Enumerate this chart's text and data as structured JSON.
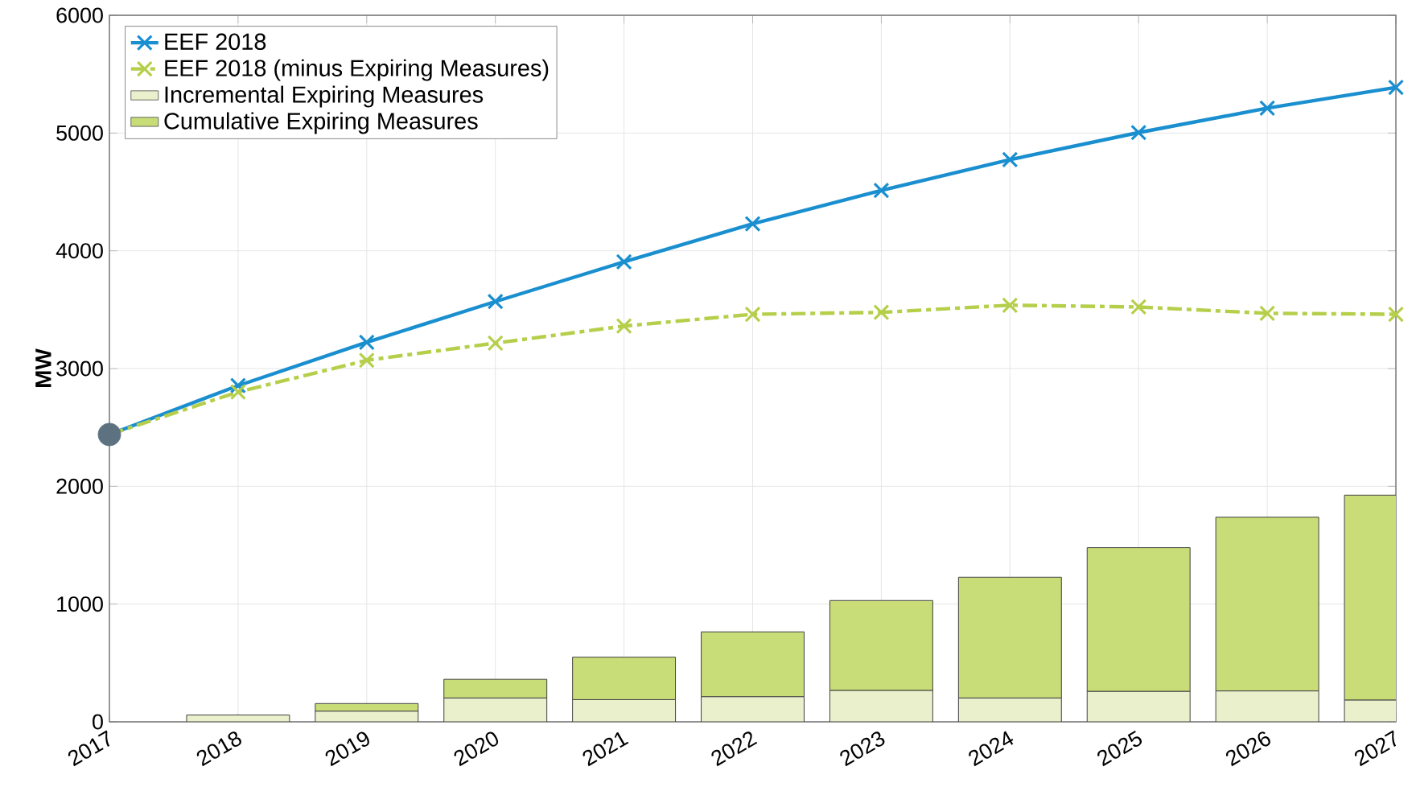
{
  "chart_data": {
    "type": "bar",
    "stacked": true,
    "ylabel": "MW",
    "x": [
      2018,
      2019,
      2020,
      2021,
      2022,
      2023,
      2024,
      2025,
      2026,
      2027
    ],
    "xlim": [
      2017,
      2027
    ],
    "xticks": [
      2017,
      2018,
      2019,
      2020,
      2021,
      2022,
      2023,
      2024,
      2025,
      2026,
      2027
    ],
    "ylim": [
      0,
      6000
    ],
    "yticks": [
      0,
      1000,
      2000,
      3000,
      4000,
      5000,
      6000
    ],
    "grid": true,
    "legend": "top left",
    "series": [
      {
        "name": "EEF 2018",
        "type": "line",
        "color": "#1a8fd0",
        "marker": "cross",
        "line_style": "solid",
        "x": [
          2017,
          2018,
          2019,
          2020,
          2021,
          2022,
          2023,
          2024,
          2025,
          2026,
          2027
        ],
        "values": [
          2440,
          2855,
          3223,
          3569,
          3906,
          4229,
          4513,
          4774,
          5004,
          5211,
          5388
        ]
      },
      {
        "name": "EEF 2018 (minus Expiring Measures)",
        "type": "line",
        "color": "#b5cf4a",
        "marker": "cross",
        "line_style": "dashed",
        "x": [
          2017,
          2018,
          2019,
          2020,
          2021,
          2022,
          2023,
          2024,
          2025,
          2026,
          2027
        ],
        "values": [
          2440,
          2801,
          3070,
          3216,
          3361,
          3461,
          3477,
          3538,
          3523,
          3469,
          3461
        ]
      },
      {
        "type": "scatter",
        "color": "#5c7280",
        "marker": "circle",
        "x": [
          2017
        ],
        "values": [
          2440
        ]
      },
      {
        "name": "Incremental Expiring Measures",
        "color": "#eaf0cc",
        "values": [
          58,
          90,
          202,
          188,
          213,
          266,
          202,
          258,
          262,
          184
        ]
      },
      {
        "name": "Cumulative Expiring Measures",
        "color": "#c8dc78",
        "values": [
          0,
          65,
          159,
          361,
          551,
          764,
          1026,
          1221,
          1476,
          1741
        ]
      }
    ]
  }
}
